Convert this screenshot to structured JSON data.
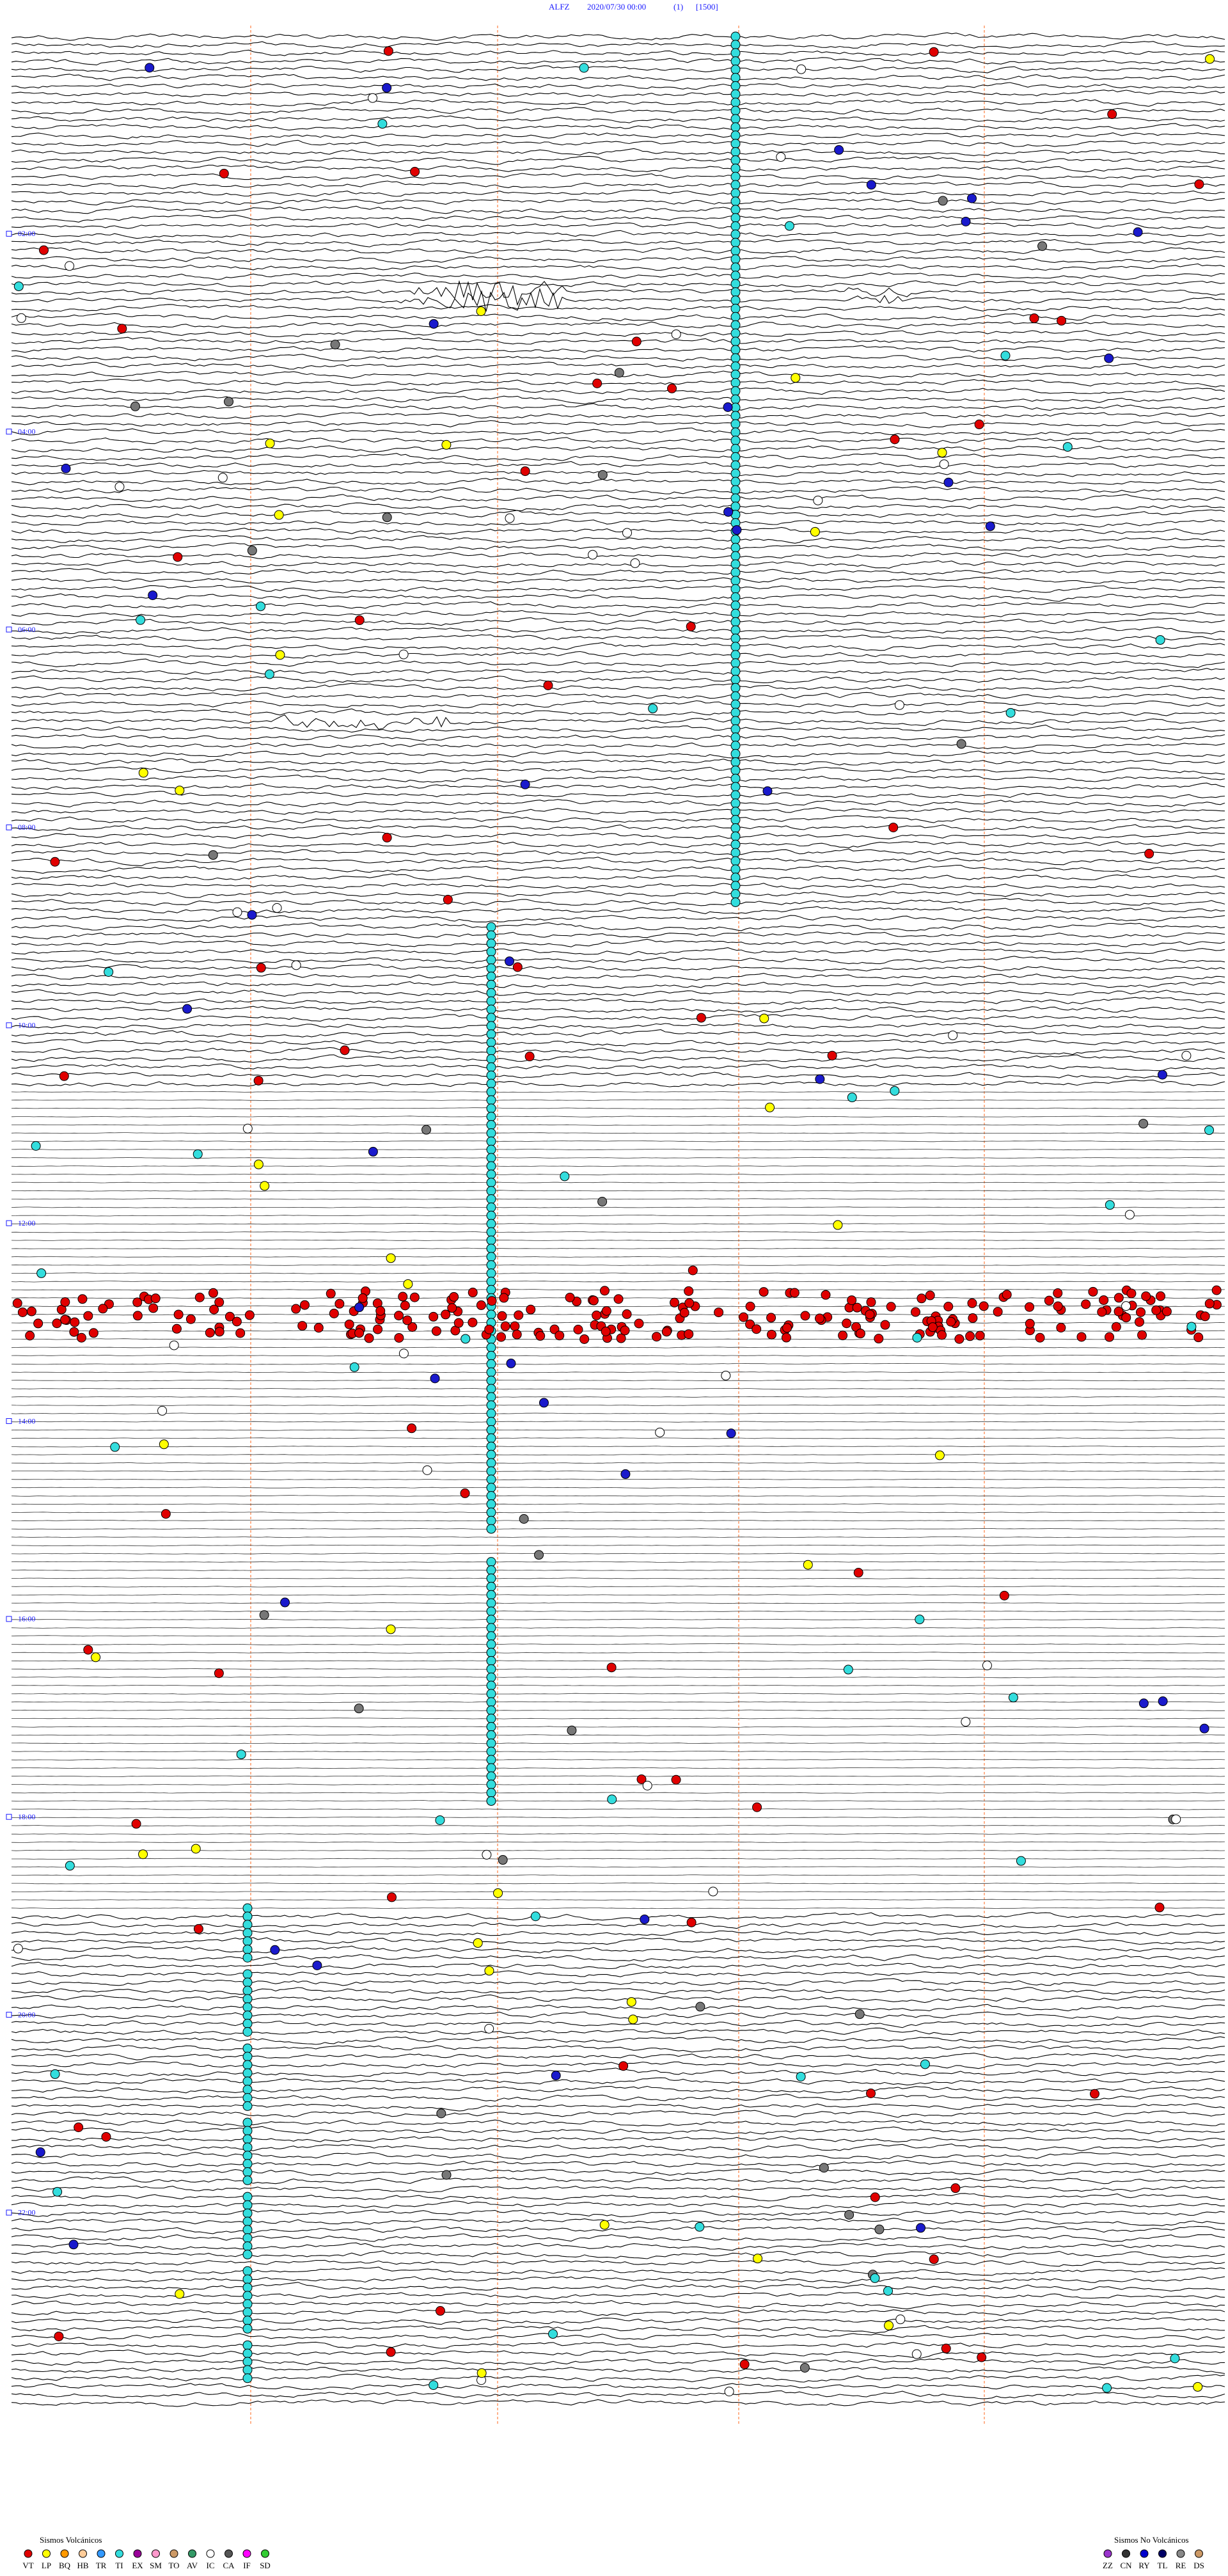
{
  "header": {
    "station": "ALFZ",
    "datetime": "2020/07/30 00:00",
    "channel": "(1)",
    "scale": "[1500]"
  },
  "time_labels": [
    "02:00",
    "04:00",
    "06:00",
    "08:00",
    "10:00",
    "12:00",
    "14:00",
    "16:00",
    "18:00",
    "20:00",
    "22:00"
  ],
  "legend": {
    "volcanic": {
      "title": "Sismos Volcánicos",
      "codes": [
        {
          "code": "VT",
          "color": "#e00000"
        },
        {
          "code": "LP",
          "color": "#ffff00"
        },
        {
          "code": "BQ",
          "color": "#ff9900"
        },
        {
          "code": "HB",
          "color": "#ffcc99"
        },
        {
          "code": "TR",
          "color": "#3399ff"
        },
        {
          "code": "TI",
          "color": "#33dddd"
        },
        {
          "code": "EX",
          "color": "#990099"
        },
        {
          "code": "SM",
          "color": "#ff99cc"
        },
        {
          "code": "TO",
          "color": "#cc9966"
        },
        {
          "code": "AV",
          "color": "#339966"
        },
        {
          "code": "IC",
          "color": "#ffffff"
        },
        {
          "code": "CA",
          "color": "#555555"
        },
        {
          "code": "IF",
          "color": "#ff00ff"
        },
        {
          "code": "SD",
          "color": "#33cc33"
        }
      ]
    },
    "non_volcanic": {
      "title": "Sismos No Volcánicos",
      "codes": [
        {
          "code": "ZZ",
          "color": "#9933cc"
        },
        {
          "code": "CN",
          "color": "#333333"
        },
        {
          "code": "RY",
          "color": "#0000cc"
        },
        {
          "code": "TL",
          "color": "#000066"
        },
        {
          "code": "RE",
          "color": "#888888"
        },
        {
          "code": "DS",
          "color": "#cc9966"
        }
      ]
    }
  }
}
